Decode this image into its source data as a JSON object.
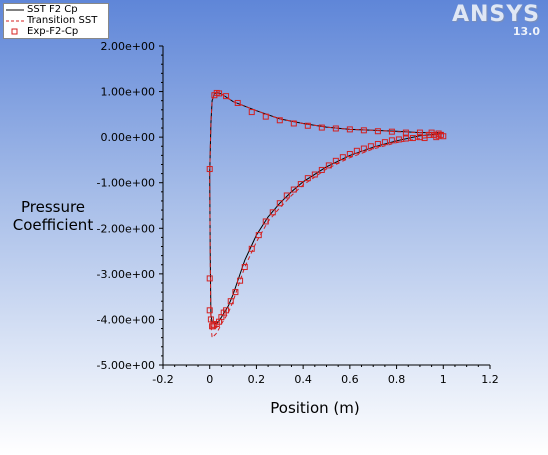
{
  "brand": {
    "logo": "ANSYS",
    "version": "13.0"
  },
  "legend": [
    {
      "label": "SST F2 Cp",
      "color": "#000000",
      "style": "solid"
    },
    {
      "label": "Transition SST",
      "color": "#d42020",
      "style": "dashed"
    },
    {
      "label": "Exp-F2-Cp",
      "color": "#d42020",
      "style": "square-marker"
    }
  ],
  "chart_data": {
    "type": "line",
    "title": "",
    "xlabel": "Position (m)",
    "ylabel": "Pressure Coefficient",
    "xlim": [
      -0.2,
      1.2
    ],
    "ylim": [
      -5.0,
      2.0
    ],
    "xticks": [
      "-0.2",
      "0",
      "0.2",
      "0.4",
      "0.6",
      "0.8",
      "1",
      "1.2"
    ],
    "yticks": [
      "-5.00e+00",
      "-4.00e+00",
      "-3.00e+00",
      "-2.00e+00",
      "-1.00e+00",
      "0.00e+00",
      "1.00e+00",
      "2.00e+00"
    ],
    "grid": false,
    "legend_position": "top-left",
    "series": [
      {
        "name": "SST F2 Cp",
        "color": "#000000",
        "style": "solid",
        "x": [
          1.0,
          0.9,
          0.8,
          0.7,
          0.6,
          0.5,
          0.4,
          0.3,
          0.2,
          0.15,
          0.1,
          0.07,
          0.05,
          0.03,
          0.02,
          0.01,
          0.005,
          0.0,
          0.002,
          0.005,
          0.01,
          0.03,
          0.05,
          0.08,
          0.1,
          0.13,
          0.15,
          0.2,
          0.25,
          0.3,
          0.35,
          0.4,
          0.5,
          0.6,
          0.7,
          0.8,
          0.9,
          1.0
        ],
        "y": [
          0.1,
          0.1,
          0.13,
          0.15,
          0.17,
          0.22,
          0.3,
          0.4,
          0.58,
          0.68,
          0.78,
          0.88,
          0.95,
          0.98,
          0.95,
          0.8,
          0.3,
          -0.8,
          -2.5,
          -3.9,
          -4.05,
          -4.1,
          -3.95,
          -3.7,
          -3.45,
          -3.0,
          -2.7,
          -2.15,
          -1.75,
          -1.45,
          -1.2,
          -0.98,
          -0.65,
          -0.4,
          -0.22,
          -0.08,
          0.03,
          0.08
        ]
      },
      {
        "name": "Transition SST",
        "color": "#d42020",
        "style": "dashed",
        "x": [
          1.0,
          0.9,
          0.8,
          0.7,
          0.6,
          0.5,
          0.4,
          0.3,
          0.2,
          0.15,
          0.1,
          0.07,
          0.05,
          0.03,
          0.02,
          0.01,
          0.005,
          0.0,
          0.002,
          0.005,
          0.01,
          0.03,
          0.05,
          0.08,
          0.1,
          0.13,
          0.15,
          0.2,
          0.25,
          0.3,
          0.35,
          0.4,
          0.5,
          0.6,
          0.7,
          0.8,
          0.9,
          1.0
        ],
        "y": [
          0.08,
          0.1,
          0.12,
          0.15,
          0.17,
          0.22,
          0.3,
          0.4,
          0.58,
          0.68,
          0.78,
          0.88,
          0.95,
          0.99,
          0.95,
          0.8,
          0.3,
          -0.8,
          -2.6,
          -4.1,
          -4.4,
          -4.3,
          -4.1,
          -3.85,
          -3.6,
          -3.15,
          -2.85,
          -2.3,
          -1.85,
          -1.55,
          -1.28,
          -1.05,
          -0.7,
          -0.45,
          -0.26,
          -0.12,
          -0.03,
          0.03
        ]
      },
      {
        "name": "Exp-F2-Cp",
        "color": "#d42020",
        "style": "marker",
        "x": [
          0.0,
          0.0,
          0.0,
          0.005,
          0.01,
          0.015,
          0.02,
          0.03,
          0.04,
          0.05,
          0.06,
          0.07,
          0.09,
          0.11,
          0.13,
          0.15,
          0.18,
          0.21,
          0.24,
          0.27,
          0.3,
          0.33,
          0.36,
          0.39,
          0.42,
          0.45,
          0.48,
          0.51,
          0.54,
          0.57,
          0.6,
          0.63,
          0.66,
          0.69,
          0.72,
          0.75,
          0.78,
          0.81,
          0.84,
          0.87,
          0.9,
          0.92,
          0.94,
          0.96,
          0.97,
          0.98,
          0.99,
          1.0,
          0.02,
          0.03,
          0.04,
          0.07,
          0.12,
          0.18,
          0.24,
          0.3,
          0.36,
          0.42,
          0.48,
          0.54,
          0.6,
          0.66,
          0.72,
          0.78,
          0.84,
          0.9,
          0.95,
          0.98
        ],
        "y": [
          -0.7,
          -3.1,
          -3.8,
          -4.0,
          -4.15,
          -4.15,
          -4.12,
          -4.1,
          -4.05,
          -3.95,
          -3.85,
          -3.8,
          -3.6,
          -3.4,
          -3.15,
          -2.85,
          -2.45,
          -2.15,
          -1.85,
          -1.65,
          -1.45,
          -1.28,
          -1.15,
          -1.03,
          -0.9,
          -0.82,
          -0.72,
          -0.62,
          -0.52,
          -0.44,
          -0.37,
          -0.3,
          -0.25,
          -0.2,
          -0.15,
          -0.11,
          -0.07,
          -0.05,
          -0.03,
          -0.02,
          0.0,
          -0.02,
          0.05,
          0.05,
          0.0,
          0.03,
          0.05,
          0.02,
          0.92,
          0.97,
          0.96,
          0.9,
          0.75,
          0.55,
          0.45,
          0.37,
          0.3,
          0.25,
          0.21,
          0.19,
          0.17,
          0.15,
          0.13,
          0.12,
          0.1,
          0.1,
          0.1,
          0.08
        ]
      }
    ]
  }
}
